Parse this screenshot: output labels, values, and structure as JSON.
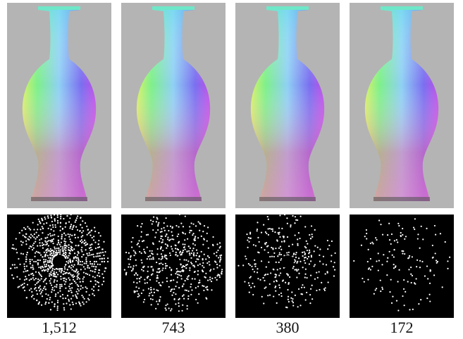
{
  "panels": [
    {
      "label": "1,512"
    },
    {
      "label": "743"
    },
    {
      "label": "380"
    },
    {
      "label": "172"
    }
  ]
}
